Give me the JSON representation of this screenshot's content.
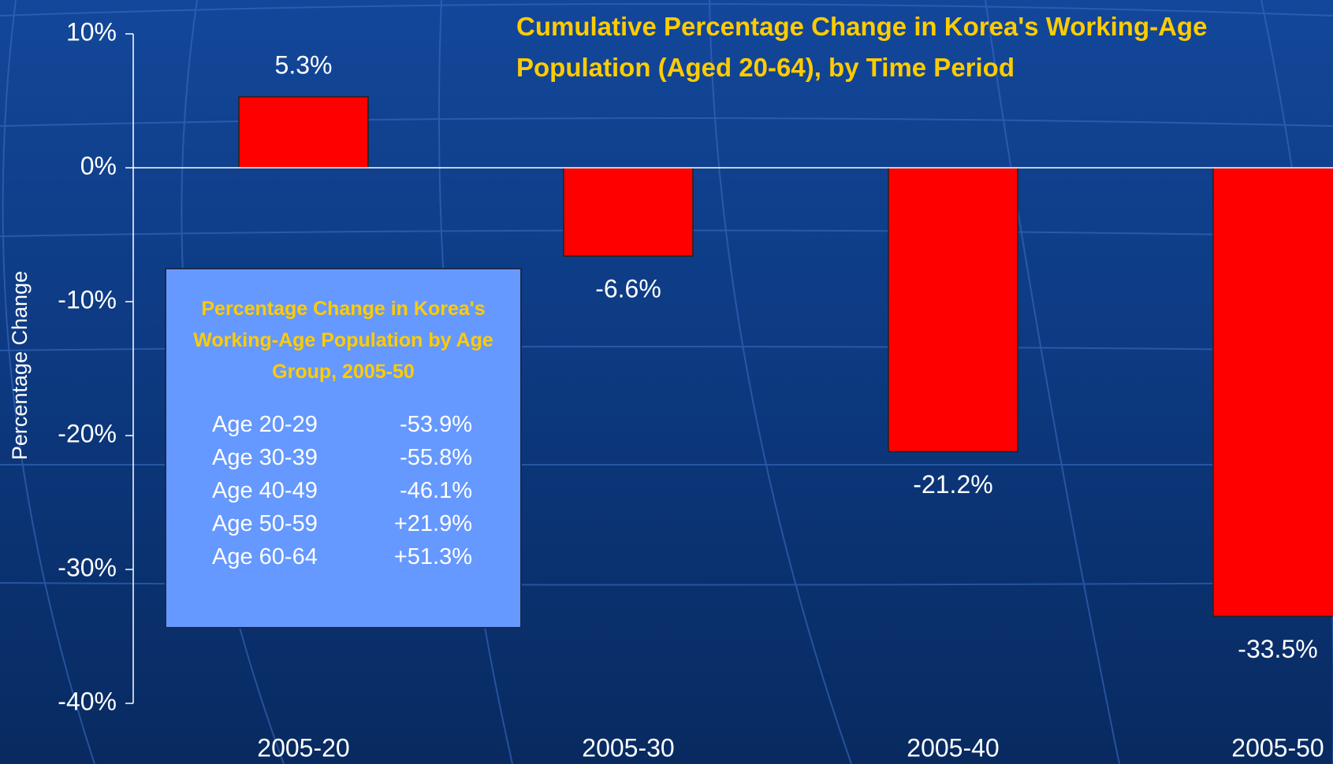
{
  "chart_data": {
    "type": "bar",
    "title": "Cumulative Percentage Change in Korea's Working-Age Population (Aged 20-64), by Time Period",
    "y_label": "Percentage Change",
    "categories": [
      "2005-20",
      "2005-30",
      "2005-40",
      "2005-50"
    ],
    "values": [
      5.3,
      -6.6,
      -21.2,
      -33.5
    ],
    "value_labels": [
      "5.3%",
      "-6.6%",
      "-21.2%",
      "-33.5%"
    ],
    "color": "#ff0000",
    "ylim": [
      -40,
      10
    ],
    "yticks": [
      {
        "value": 10,
        "label": "10%"
      },
      {
        "value": 0,
        "label": "0%"
      },
      {
        "value": -10,
        "label": "-10%"
      },
      {
        "value": -20,
        "label": "-20%"
      },
      {
        "value": -30,
        "label": "-30%"
      },
      {
        "value": -40,
        "label": "-40%"
      }
    ],
    "grid": false
  },
  "inset": {
    "title": "Percentage Change in Korea's Working-Age Population by Age Group, 2005-50",
    "rows": [
      [
        "Age 20-29",
        "-53.9%"
      ],
      [
        "Age 30-39",
        "-55.8%"
      ],
      [
        "Age 40-49",
        "-46.1%"
      ],
      [
        "Age 50-59",
        "+21.9%"
      ],
      [
        "Age 60-64",
        "+51.3%"
      ]
    ]
  }
}
